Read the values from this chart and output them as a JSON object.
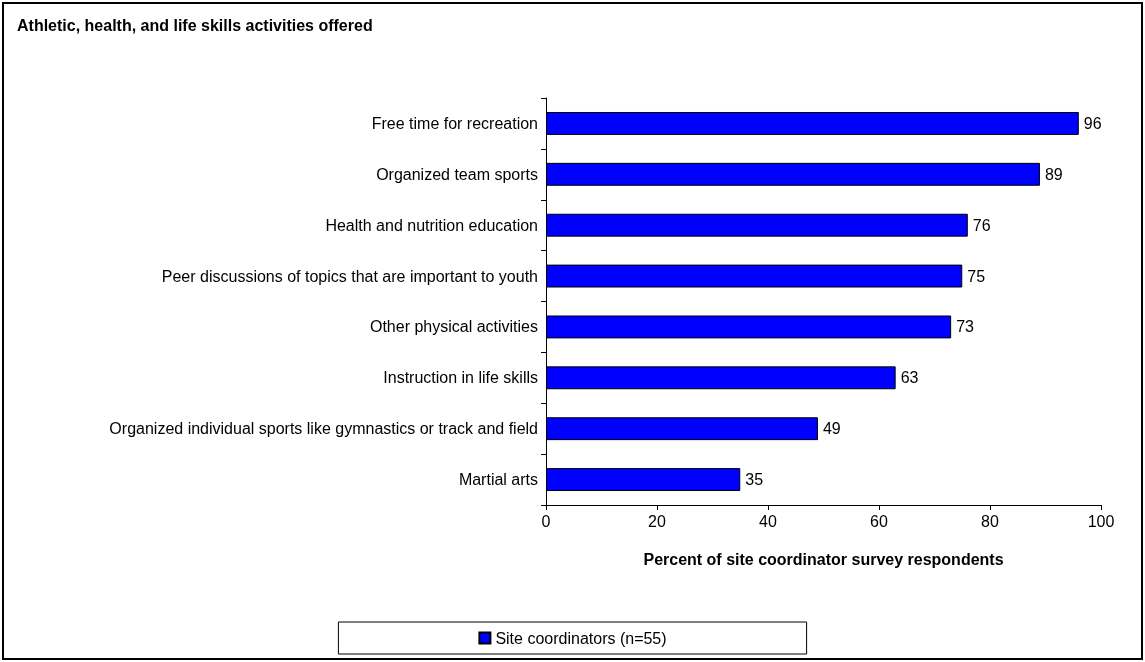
{
  "chart_data": {
    "type": "bar",
    "orientation": "horizontal",
    "title": "Athletic, health, and life skills activities offered",
    "xlabel": "Percent of site coordinator survey respondents",
    "categories": [
      "Free time for recreation",
      "Organized team sports",
      "Health and nutrition education",
      "Peer discussions of topics that are important to youth",
      "Other physical activities",
      "Instruction in life skills",
      "Organized individual sports like gymnastics or track and field",
      "Martial arts"
    ],
    "series": [
      {
        "name": "Site coordinators (n=55)",
        "color": "#0000ff",
        "values": [
          96,
          89,
          76,
          75,
          73,
          63,
          49,
          35
        ]
      }
    ],
    "xlim": [
      0,
      100
    ],
    "xticks": [
      0,
      20,
      40,
      60,
      80,
      100
    ],
    "grid": false,
    "legend": "bottom",
    "data_labels": true
  }
}
